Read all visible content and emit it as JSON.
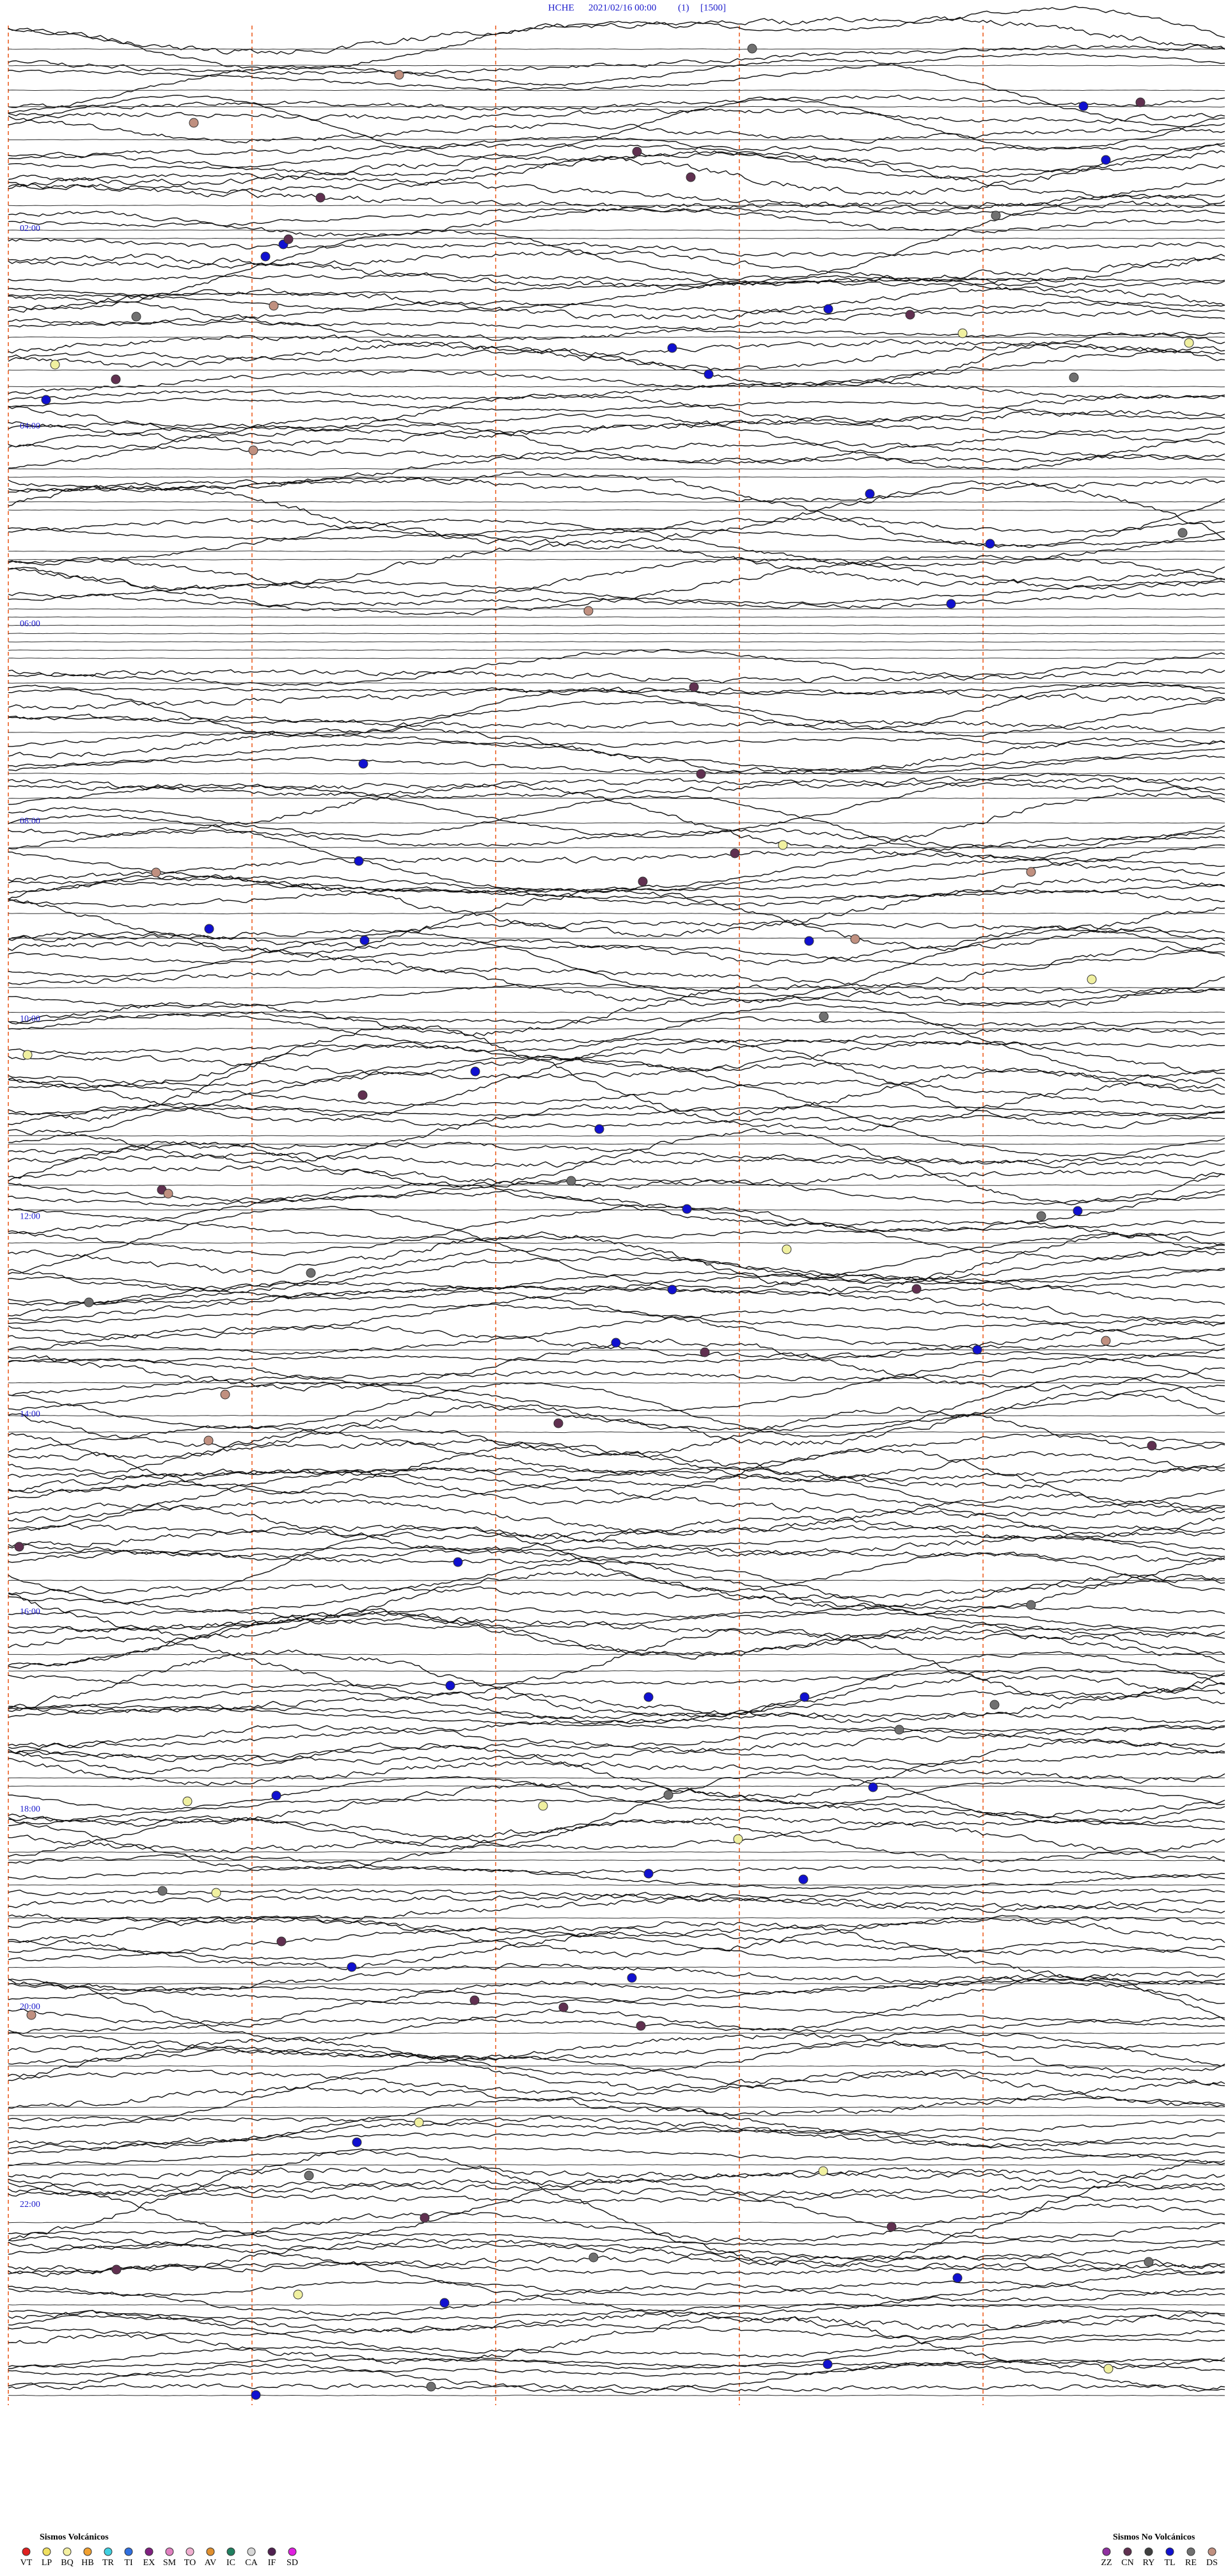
{
  "header": {
    "station": "HCHE",
    "datetime": "2021/02/16 00:00",
    "channel": "(1)",
    "scale": "[1500]"
  },
  "time_labels": [
    "02:00",
    "04:00",
    "06:00",
    "08:00",
    "10:00",
    "12:00",
    "14:00",
    "16:00",
    "18:00",
    "20:00",
    "22:00"
  ],
  "legend": {
    "volcanic": {
      "title": "Sismos Volcánicos",
      "codes": [
        {
          "code": "VT",
          "color": "#e02020"
        },
        {
          "code": "LP",
          "color": "#f0e060"
        },
        {
          "code": "BQ",
          "color": "#f4f0a0"
        },
        {
          "code": "HB",
          "color": "#f0a030"
        },
        {
          "code": "TR",
          "color": "#40d0e0"
        },
        {
          "code": "TI",
          "color": "#3070e0"
        },
        {
          "code": "EX",
          "color": "#802080"
        },
        {
          "code": "SM",
          "color": "#e080c0"
        },
        {
          "code": "TO",
          "color": "#f0b0d0"
        },
        {
          "code": "AV",
          "color": "#e09030"
        },
        {
          "code": "IC",
          "color": "#208060"
        },
        {
          "code": "CA",
          "color": "#d8d8d8"
        },
        {
          "code": "IF",
          "color": "#502050"
        },
        {
          "code": "SD",
          "color": "#e020e0"
        }
      ]
    },
    "non_volcanic": {
      "title": "Sismos No Volcánicos",
      "codes": [
        {
          "code": "ZZ",
          "color": "#9030a0"
        },
        {
          "code": "CN",
          "color": "#603050"
        },
        {
          "code": "RY",
          "color": "#404040"
        },
        {
          "code": "TL",
          "color": "#1010d0"
        },
        {
          "code": "RE",
          "color": "#707070"
        },
        {
          "code": "DS",
          "color": "#c09080"
        }
      ]
    }
  }
}
